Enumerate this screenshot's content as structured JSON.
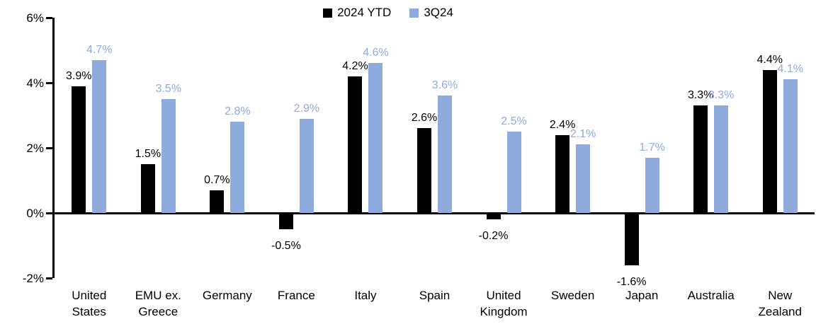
{
  "chart_data": {
    "type": "bar",
    "title": "",
    "xlabel": "",
    "ylabel": "",
    "categories": [
      "United States",
      "EMU ex. Greece",
      "Germany",
      "France",
      "Italy",
      "Spain",
      "United Kingdom",
      "Sweden",
      "Japan",
      "Australia",
      "New Zealand"
    ],
    "category_label_lines": [
      [
        "United",
        "States"
      ],
      [
        "EMU ex.",
        "Greece"
      ],
      [
        "Germany"
      ],
      [
        "France"
      ],
      [
        "Italy"
      ],
      [
        "Spain"
      ],
      [
        "United",
        "Kingdom"
      ],
      [
        "Sweden"
      ],
      [
        "Japan"
      ],
      [
        "Australia"
      ],
      [
        "New",
        "Zealand"
      ]
    ],
    "series": [
      {
        "name": "2024 YTD",
        "color": "#000000",
        "values": [
          3.9,
          1.5,
          0.7,
          -0.5,
          4.2,
          2.6,
          -0.2,
          2.4,
          -1.6,
          3.3,
          4.4
        ],
        "labels": [
          "3.9%",
          "1.5%",
          "0.7%",
          "-0.5%",
          "4.2%",
          "2.6%",
          "-0.2%",
          "2.4%",
          "-1.6%",
          "3.3%",
          "4.4%"
        ]
      },
      {
        "name": "3Q24",
        "color": "#8FAADC",
        "values": [
          4.7,
          3.5,
          2.8,
          2.9,
          4.6,
          3.6,
          2.5,
          2.1,
          1.7,
          3.3,
          4.1
        ],
        "labels": [
          "4.7%",
          "3.5%",
          "2.8%",
          "2.9%",
          "4.6%",
          "3.6%",
          "2.5%",
          "2.1%",
          "1.7%",
          "3.3%",
          "4.1%"
        ]
      }
    ],
    "ylim": [
      -2,
      6
    ],
    "yticks": [
      {
        "value": 6,
        "label": "6%"
      },
      {
        "value": 4,
        "label": "4%"
      },
      {
        "value": 2,
        "label": "2%"
      },
      {
        "value": 0,
        "label": "0%"
      },
      {
        "value": -2,
        "label": "-2%"
      }
    ],
    "grid": false,
    "legend_position": "top-center",
    "colors": {
      "axis": "#000000",
      "background": "#ffffff",
      "series_2024_ytd": "#000000",
      "series_3q24": "#8FAADC"
    }
  }
}
